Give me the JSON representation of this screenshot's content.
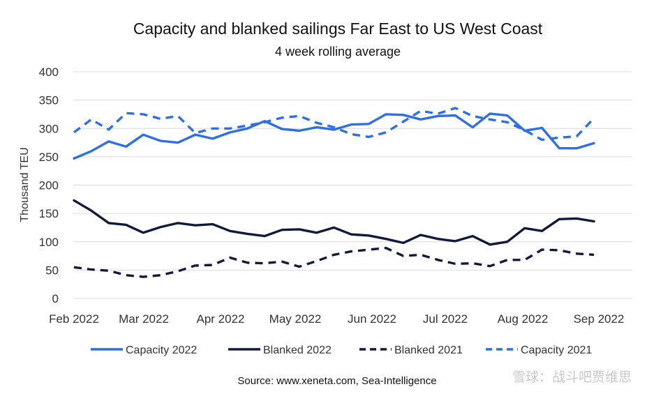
{
  "chart_data": {
    "type": "line",
    "title": "Capacity and blanked sailings Far East to US West Coast",
    "subtitle": "4 week rolling average",
    "ylabel": "Thousand TEU",
    "xlabel": "",
    "ylim": [
      0,
      400
    ],
    "yticks": [
      "0",
      "50",
      "100",
      "150",
      "200",
      "250",
      "300",
      "350",
      "400"
    ],
    "grid": true,
    "legend_position": "bottom",
    "x_tick_labels": [
      "Feb 2022",
      "Mar 2022",
      "Apr 2022",
      "May 2022",
      "Jun 2022",
      "Jul 2022",
      "Aug 2022",
      "Sep 2022"
    ],
    "series": [
      {
        "name": "Capacity 2022",
        "color": "#2f6fe4",
        "style": "solid",
        "values": [
          247,
          260,
          277,
          268,
          289,
          278,
          275,
          289,
          282,
          293,
          300,
          313,
          299,
          296,
          302,
          298,
          307,
          308,
          325,
          324,
          316,
          322,
          323,
          302,
          326,
          323,
          296,
          301,
          265,
          265,
          274
        ]
      },
      {
        "name": "Blanked 2022",
        "color": "#111a3a",
        "style": "solid",
        "values": [
          173,
          155,
          133,
          130,
          116,
          126,
          133,
          129,
          131,
          119,
          114,
          110,
          121,
          122,
          116,
          125,
          113,
          111,
          105,
          98,
          112,
          105,
          101,
          110,
          95,
          100,
          124,
          119,
          140,
          141,
          136
        ]
      },
      {
        "name": "Blanked 2021",
        "color": "#111a3a",
        "style": "dashed",
        "values": [
          55,
          51,
          49,
          41,
          38,
          41,
          48,
          58,
          59,
          72,
          63,
          62,
          65,
          56,
          66,
          77,
          83,
          86,
          89,
          75,
          77,
          68,
          61,
          62,
          57,
          68,
          68,
          86,
          85,
          79,
          77
        ]
      },
      {
        "name": "Capacity 2021",
        "color": "#2f6fe4",
        "style": "dashed",
        "values": [
          293,
          316,
          298,
          327,
          325,
          317,
          322,
          292,
          300,
          300,
          305,
          311,
          319,
          322,
          310,
          302,
          290,
          285,
          293,
          312,
          331,
          326,
          336,
          322,
          316,
          311,
          297,
          280,
          284,
          286,
          318
        ]
      }
    ],
    "source": "Source: www.xeneta.com, Sea-Intelligence"
  },
  "watermark": "雪球：战斗吧贾维思"
}
